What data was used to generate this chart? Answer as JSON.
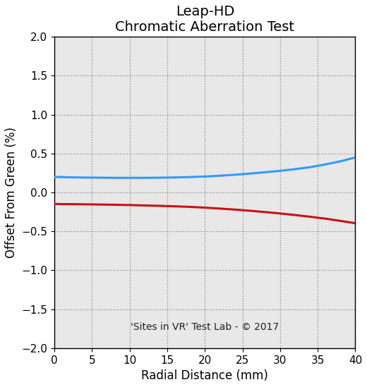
{
  "title_line1": "Leap-HD",
  "title_line2": "Chromatic Aberration Test",
  "xlabel": "Radial Distance (mm)",
  "ylabel": "Offset From Green (%)",
  "xlim": [
    0,
    40
  ],
  "ylim": [
    -2.0,
    2.0
  ],
  "xticks": [
    0,
    5,
    10,
    15,
    20,
    25,
    30,
    35,
    40
  ],
  "yticks": [
    -2.0,
    -1.5,
    -1.0,
    -0.5,
    0.0,
    0.5,
    1.0,
    1.5,
    2.0
  ],
  "blue_x": [
    0,
    2,
    4,
    6,
    8,
    10,
    12,
    14,
    16,
    18,
    20,
    22,
    24,
    26,
    28,
    30,
    32,
    34,
    36,
    38,
    40
  ],
  "blue_y": [
    0.2,
    0.195,
    0.192,
    0.19,
    0.188,
    0.188,
    0.188,
    0.19,
    0.193,
    0.198,
    0.205,
    0.215,
    0.228,
    0.243,
    0.26,
    0.278,
    0.3,
    0.325,
    0.36,
    0.4,
    0.45
  ],
  "red_x": [
    0,
    2,
    4,
    6,
    8,
    10,
    12,
    14,
    16,
    18,
    20,
    22,
    24,
    26,
    28,
    30,
    32,
    34,
    36,
    38,
    40
  ],
  "red_y": [
    -0.148,
    -0.15,
    -0.152,
    -0.155,
    -0.158,
    -0.162,
    -0.167,
    -0.172,
    -0.178,
    -0.185,
    -0.195,
    -0.207,
    -0.22,
    -0.235,
    -0.252,
    -0.27,
    -0.29,
    -0.312,
    -0.336,
    -0.365,
    -0.395
  ],
  "blue_color": "#3399ff",
  "red_color": "#cc1111",
  "grid_color": "#888888",
  "plot_bg_color": "#e8e8e8",
  "fig_bg_color": "#ffffff",
  "watermark": "'Sites in VR' Test Lab - © 2017",
  "watermark_data_x": 20,
  "watermark_data_y": -1.73,
  "title_fontsize": 14,
  "label_fontsize": 12,
  "tick_fontsize": 11,
  "watermark_fontsize": 10,
  "line_width": 2.2
}
